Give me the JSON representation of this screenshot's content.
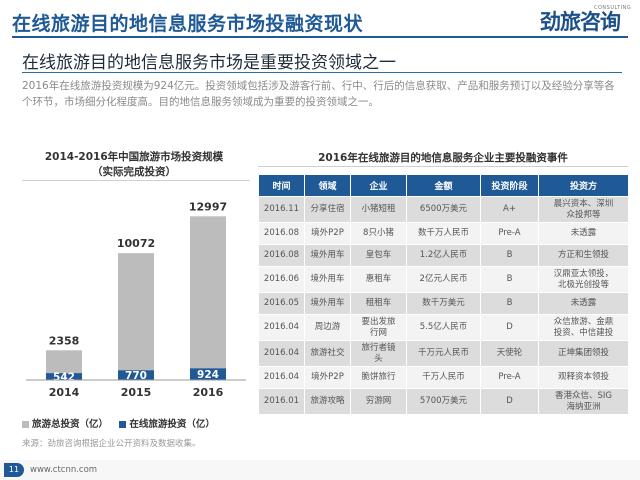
{
  "page": {
    "title": "在线旅游目的地信息服务市场投融资现状",
    "subtitle": "在线旅游目的地信息服务市场是重要投资领域之一",
    "intro": "2016年在线旅游投资规模为924亿元。投资领域包括涉及游客行前、行中、行后的信息获取、产品和服务预订以及经验分享等各个环节，市场细分化程度高。目的地信息服务领域成为重要的投资领域之一。",
    "source": "来源：劲旅咨询根据企业公开资料及数据收集。",
    "page_number": "11",
    "footer_url": "www.ctcnn.com"
  },
  "logo": {
    "main": "劲旅咨询",
    "sub": "CONSULTING"
  },
  "chart_data": {
    "type": "bar",
    "title": "2014-2016年中国旅游市场投资规模\n（实际完成投资）",
    "categories": [
      "2014",
      "2015",
      "2016"
    ],
    "series": [
      {
        "name": "旅游总投资（亿）",
        "values": [
          2358,
          10072,
          12997
        ],
        "color": "#bcbcbc"
      },
      {
        "name": "在线旅游投资（亿）",
        "values": [
          542,
          770,
          924
        ],
        "color": "#1f5a96"
      }
    ],
    "ylim": [
      0,
      13500
    ],
    "grid": false,
    "legend": "bottom"
  },
  "table": {
    "title": "2016年在线旅游目的地信息服务企业主要投融资事件",
    "headers": [
      "时间",
      "领域",
      "企业",
      "金额",
      "投资阶段",
      "投资方"
    ],
    "rows": [
      [
        "2016.11",
        "分享住宿",
        "小猪短租",
        "6500万美元",
        "A+",
        "晨兴资本、深圳\n众投邦等"
      ],
      [
        "2016.08",
        "境外P2P",
        "8只小猪",
        "数千万人民币",
        "Pre-A",
        "未透露"
      ],
      [
        "2016.08",
        "境外用车",
        "皇包车",
        "1.2亿人民币",
        "B",
        "方正和生领投"
      ],
      [
        "2016.06",
        "境外用车",
        "惠租车",
        "2亿元人民币",
        "B",
        "汉鼎亚太领投，\n北极光创投等"
      ],
      [
        "2016.05",
        "境外用车",
        "租租车",
        "数千万美元",
        "B",
        "未透露"
      ],
      [
        "2016.04",
        "周边游",
        "要出发旅\n行网",
        "5.5亿人民币",
        "D",
        "众信旅游、金鼎\n投资、中信建投"
      ],
      [
        "2016.04",
        "旅游社交",
        "旅行者镜\n头",
        "千万元人民币",
        "天使轮",
        "正坤集团领投"
      ],
      [
        "2016.04",
        "境外P2P",
        "脆饼旅行",
        "千万人民币",
        "Pre-A",
        "观释资本领投"
      ],
      [
        "2016.01",
        "旅游攻略",
        "穷游网",
        "5700万美元",
        "D",
        "香港众信、SIG\n海纳亚洲"
      ]
    ]
  }
}
